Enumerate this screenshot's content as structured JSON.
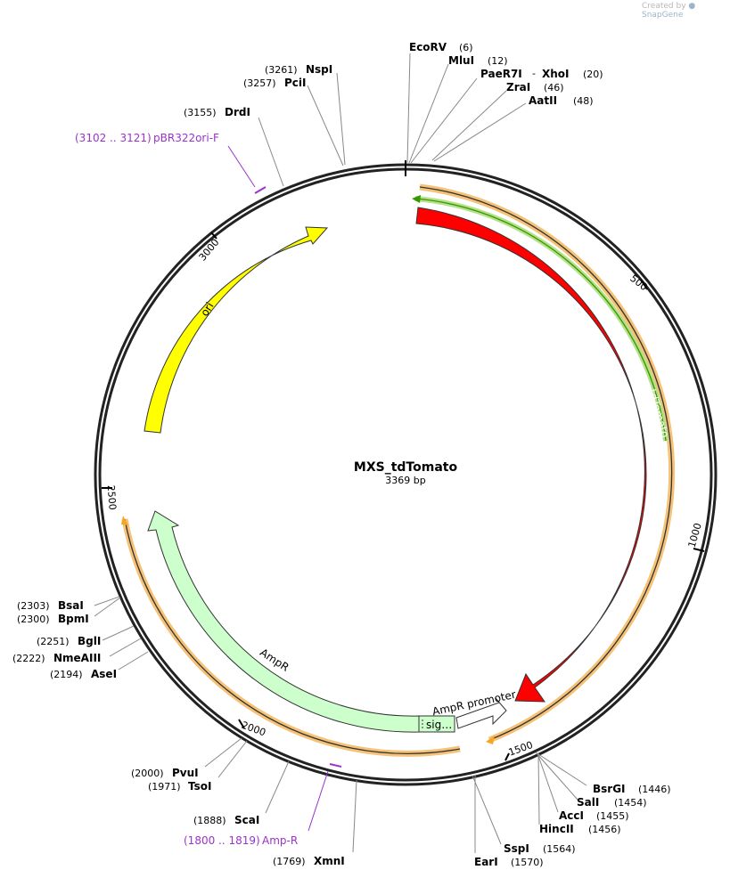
{
  "credit": {
    "prefix": "Created by",
    "brand": "SnapGene"
  },
  "plasmid": {
    "name": "MXS_tdTomato",
    "length_label": "3369 bp"
  },
  "ticks": [
    "500",
    "1000",
    "1500",
    "2000",
    "2500",
    "3000"
  ],
  "features": {
    "tdtomato": "tdTomato",
    "ori": "ori",
    "ampr": "AmpR",
    "ampr_promoter": "AmpR promoter",
    "sig": "sig…"
  },
  "enzymes": [
    {
      "id": "ecorv",
      "name": "EcoRV",
      "pos": "(6)"
    },
    {
      "id": "mlui",
      "name": "MluI",
      "pos": "(12)"
    },
    {
      "id": "paer7i",
      "name": "PaeR7I",
      "sep": "-",
      "name2": "XhoI",
      "pos": "(20)"
    },
    {
      "id": "zrai",
      "name": "ZraI",
      "pos": "(46)"
    },
    {
      "id": "aatii",
      "name": "AatII",
      "pos": "(48)"
    },
    {
      "id": "bsrgi",
      "name": "BsrGI",
      "pos": "(1446)"
    },
    {
      "id": "sali",
      "name": "SalI",
      "pos": "(1454)"
    },
    {
      "id": "acci",
      "name": "AccI",
      "pos": "(1455)"
    },
    {
      "id": "hincii",
      "name": "HincII",
      "pos": "(1456)"
    },
    {
      "id": "sspi",
      "name": "SspI",
      "pos": "(1564)"
    },
    {
      "id": "eari",
      "name": "EarI",
      "pos": "(1570)"
    },
    {
      "id": "xmni",
      "name": "XmnI",
      "pos": "(1769)"
    },
    {
      "id": "scai",
      "name": "ScaI",
      "pos": "(1888)"
    },
    {
      "id": "tsoi",
      "name": "TsoI",
      "pos": "(1971)"
    },
    {
      "id": "pvui",
      "name": "PvuI",
      "pos": "(2000)"
    },
    {
      "id": "asei",
      "name": "AseI",
      "pos": "(2194)"
    },
    {
      "id": "nmeaiii",
      "name": "NmeAIII",
      "pos": "(2222)"
    },
    {
      "id": "bgli",
      "name": "BglI",
      "pos": "(2251)"
    },
    {
      "id": "bpmi",
      "name": "BpmI",
      "pos": "(2300)"
    },
    {
      "id": "bsai",
      "name": "BsaI",
      "pos": "(2303)"
    },
    {
      "id": "drdi",
      "name": "DrdI",
      "pos": "(3155)"
    },
    {
      "id": "pcii",
      "name": "PciI",
      "pos": "(3257)"
    },
    {
      "id": "nspi",
      "name": "NspI",
      "pos": "(3261)"
    }
  ],
  "primers": [
    {
      "id": "pbr322ori",
      "name": "pBR322ori-F",
      "range": "(3102 .. 3121)"
    },
    {
      "id": "ampr_primer",
      "name": "Amp-R",
      "range": "(1800 .. 1819)"
    }
  ],
  "colors": {
    "tdtomato": "#ff0000",
    "ori": "#ffff00",
    "ampr": "#ccffcc",
    "primer": "#9933cc",
    "orange_track": "#f5a623",
    "green_track": "#339900"
  }
}
